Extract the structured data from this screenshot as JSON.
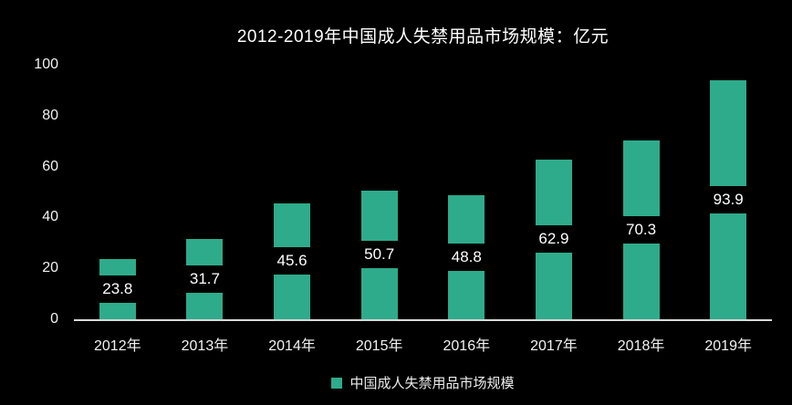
{
  "chart_data": {
    "type": "bar",
    "title": "2012-2019年中国成人失禁用品市场规模：亿元",
    "categories": [
      "2012年",
      "2013年",
      "2014年",
      "2015年",
      "2016年",
      "2017年",
      "2018年",
      "2019年"
    ],
    "values": [
      23.8,
      31.7,
      45.6,
      50.7,
      48.8,
      62.9,
      70.3,
      93.9
    ],
    "series_name": "中国成人失禁用品市场规模",
    "legend": [
      "中国成人失禁用品市场规模"
    ],
    "xlabel": "",
    "ylabel": "",
    "ylim": [
      0,
      100
    ],
    "yticks": [
      0,
      20,
      40,
      60,
      80,
      100
    ],
    "grid": false,
    "legend_position": "bottom",
    "value_label_position": "inside-middle",
    "colors": {
      "bar": "#2EAB8A",
      "background": "#000000",
      "text": "#F2F2F2",
      "axis_line": "#D9D9D9",
      "value_label_text": "#FFFFFF",
      "value_label_background": "#000000"
    }
  }
}
